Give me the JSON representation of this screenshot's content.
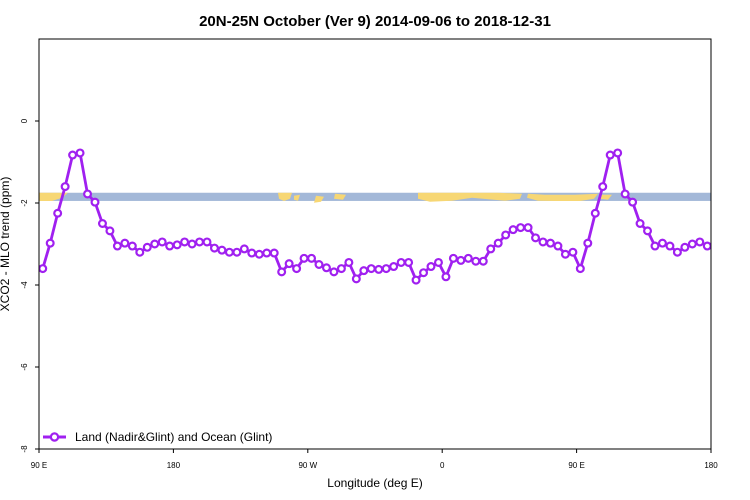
{
  "chart_data": {
    "type": "line",
    "title": "20N-25N October (Ver 9)   2014-09-06 to 2018-12-31",
    "xlabel": "Longitude (deg E)",
    "ylabel": "XCO2 - MLO trend (ppm)",
    "x_ticks": [
      {
        "value": 90,
        "label": "90 E"
      },
      {
        "value": 180,
        "label": "180"
      },
      {
        "value": 270,
        "label": "90 W"
      },
      {
        "value": 360,
        "label": "0"
      },
      {
        "value": 450,
        "label": "90 E"
      },
      {
        "value": 540,
        "label": "180"
      }
    ],
    "y_ticks": [
      {
        "value": 0,
        "label": "0"
      },
      {
        "value": -2,
        "label": "-2"
      },
      {
        "value": -4,
        "label": "-4"
      },
      {
        "value": -6,
        "label": "-6"
      },
      {
        "value": -8,
        "label": "-8"
      }
    ],
    "xlim": [
      90,
      540
    ],
    "ylim": [
      -8,
      2
    ],
    "grid": false,
    "legend_position": "bottom-left",
    "land_band": {
      "y_top": -1.75,
      "y_bottom": -1.95,
      "ocean_color": "#a3b8d8",
      "land_color": "#f7d774"
    },
    "series": [
      {
        "name": "Land (Nadir&Glint) and Ocean (Glint)",
        "color": "#a020f0",
        "x": [
          92.5,
          97.5,
          102.5,
          107.5,
          112.5,
          117.5,
          122.5,
          127.5,
          132.5,
          137.5,
          142.5,
          147.5,
          152.5,
          157.5,
          162.5,
          167.5,
          172.5,
          177.5,
          182.5,
          187.5,
          192.5,
          197.5,
          202.5,
          207.5,
          212.5,
          217.5,
          222.5,
          227.5,
          232.5,
          237.5,
          242.5,
          247.5,
          252.5,
          257.5,
          262.5,
          267.5,
          272.5,
          277.5,
          282.5,
          287.5,
          292.5,
          297.5,
          302.5,
          307.5,
          312.5,
          317.5,
          322.5,
          327.5,
          332.5,
          337.5,
          342.5,
          347.5,
          352.5,
          357.5,
          362.5,
          367.5,
          372.5,
          377.5,
          382.5,
          387.5,
          392.5,
          397.5,
          402.5,
          407.5,
          412.5,
          417.5,
          422.5,
          427.5,
          432.5,
          437.5,
          442.5,
          447.5,
          452.5,
          457.5,
          462.5,
          467.5,
          472.5,
          477.5,
          482.5,
          487.5,
          492.5,
          497.5,
          502.5,
          507.5,
          512.5,
          517.5,
          522.5,
          527.5,
          532.5,
          537.5
        ],
        "y": [
          -3.6,
          -2.98,
          -2.25,
          -1.6,
          -0.83,
          -0.78,
          -1.78,
          -1.98,
          -2.5,
          -2.68,
          -3.05,
          -2.98,
          -3.05,
          -3.2,
          -3.08,
          -3.0,
          -2.95,
          -3.05,
          -3.02,
          -2.95,
          -3.0,
          -2.95,
          -2.95,
          -3.1,
          -3.15,
          -3.2,
          -3.2,
          -3.12,
          -3.22,
          -3.25,
          -3.22,
          -3.22,
          -3.68,
          -3.48,
          -3.6,
          -3.35,
          -3.35,
          -3.5,
          -3.58,
          -3.68,
          -3.6,
          -3.45,
          -3.85,
          -3.65,
          -3.6,
          -3.62,
          -3.6,
          -3.55,
          -3.45,
          -3.45,
          -3.88,
          -3.7,
          -3.55,
          -3.45,
          -3.8,
          -3.35,
          -3.4,
          -3.35,
          -3.42,
          -3.42,
          -3.12,
          -2.98,
          -2.78,
          -2.65,
          -2.6,
          -2.6,
          -2.85,
          -2.95,
          -2.98,
          -3.05,
          -3.25,
          -3.2,
          -3.6,
          -2.98,
          -2.25,
          -1.6,
          -0.83,
          -0.78,
          -1.78,
          -1.98,
          -2.5,
          -2.68,
          -3.05,
          -2.98,
          -3.05,
          -3.2,
          -3.08,
          -3.0,
          -2.95,
          -3.05
        ]
      }
    ]
  }
}
